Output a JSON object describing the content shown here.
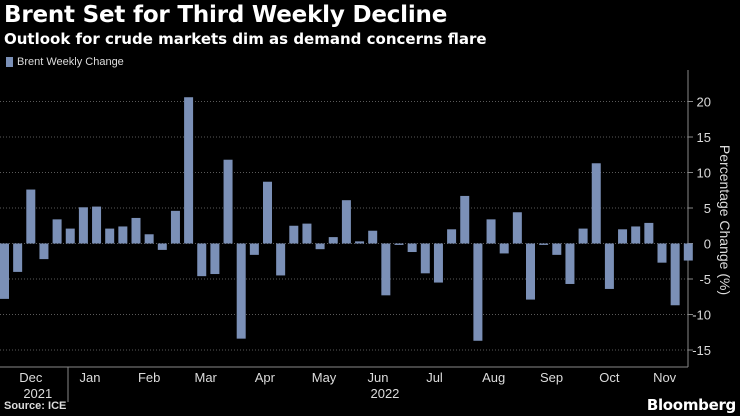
{
  "header": {
    "title": "Brent Set for Third Weekly Decline",
    "subtitle": "Outlook for crude markets dim as demand concerns flare"
  },
  "footer": {
    "source": "Source: ICE",
    "brand": "Bloomberg"
  },
  "colors": {
    "bar": "#7b90b7",
    "grid": "#5a5a5a",
    "background": "#000000",
    "text": "#dcdcdc"
  },
  "chart_data": {
    "type": "bar",
    "title": "Brent Set for Third Weekly Decline",
    "subtitle": "Outlook for crude markets dim as demand concerns flare",
    "ylabel": "Percentage Change (%)",
    "ylim": [
      -17,
      25
    ],
    "yticks": [
      -15,
      -10,
      -5,
      0,
      5,
      10,
      15,
      20
    ],
    "y_axis_position": "right",
    "grid": "horizontal dotted",
    "legend": {
      "position": "top-left",
      "entries": [
        "Brent Weekly Change"
      ]
    },
    "series": [
      {
        "name": "Brent Weekly Change",
        "values": [
          -7.8,
          -4.0,
          7.6,
          -2.2,
          3.4,
          2.1,
          5.1,
          5.2,
          2.1,
          2.4,
          3.6,
          1.3,
          -0.9,
          4.6,
          20.6,
          -4.6,
          -4.3,
          11.8,
          -13.4,
          -1.6,
          8.7,
          -4.5,
          2.5,
          2.8,
          -0.8,
          0.9,
          6.1,
          0.3,
          1.8,
          -7.3,
          -0.2,
          -1.2,
          -4.2,
          -5.5,
          2.0,
          6.7,
          -13.7,
          3.4,
          -1.4,
          4.4,
          -7.9,
          -0.2,
          -1.6,
          -5.7,
          2.1,
          11.3,
          -6.4,
          2.0,
          2.4,
          2.9,
          -2.7,
          -8.7,
          -2.4
        ]
      }
    ],
    "x_month_labels": [
      {
        "label": "Dec",
        "bar_index": 2
      },
      {
        "label": "Jan",
        "bar_index": 6.5
      },
      {
        "label": "Feb",
        "bar_index": 11
      },
      {
        "label": "Mar",
        "bar_index": 15.3
      },
      {
        "label": "Apr",
        "bar_index": 19.8
      },
      {
        "label": "May",
        "bar_index": 24.3
      },
      {
        "label": "Jun",
        "bar_index": 28.4
      },
      {
        "label": "Jul",
        "bar_index": 32.7
      },
      {
        "label": "Aug",
        "bar_index": 37.2
      },
      {
        "label": "Sep",
        "bar_index": 41.6
      },
      {
        "label": "Oct",
        "bar_index": 46
      },
      {
        "label": "Nov",
        "bar_index": 50.2
      }
    ],
    "x_year_labels": [
      {
        "label": "2021",
        "bar_index": 2
      },
      {
        "label": "2022",
        "bar_index": 28.4
      }
    ]
  }
}
